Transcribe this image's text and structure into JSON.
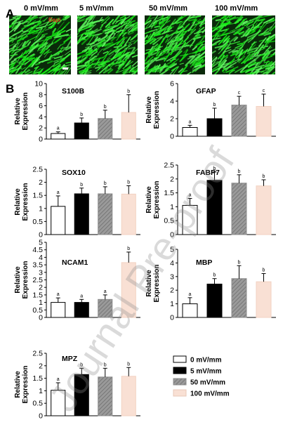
{
  "panel_a": {
    "letter": "A",
    "images": [
      {
        "label": "0 mV/mm",
        "stain_label": "Dapi"
      },
      {
        "label": "5 mV/mm"
      },
      {
        "label": "50 mV/mm"
      },
      {
        "label": "100 mV/mm"
      }
    ]
  },
  "panel_b": {
    "letter": "B"
  },
  "y_axis_label_line1": "Relative",
  "y_axis_label_line2": "Expression",
  "watermark": "Journal Pre-proof",
  "legend": [
    {
      "label": "0 mV/mm",
      "color": "#ffffff"
    },
    {
      "label": "5 mV/mm",
      "color": "#000000"
    },
    {
      "label": "50 mV/mm",
      "color": "#8c8c8c"
    },
    {
      "label": "100 mV/mm",
      "color": "#f9e0d4"
    }
  ],
  "colors": {
    "fluorescence": "#1fd11f",
    "background": "#0a2a0a"
  },
  "chart_data": [
    {
      "type": "bar",
      "title": "S100B",
      "categories": [
        "0 mV/mm",
        "5 mV/mm",
        "50 mV/mm",
        "100 mV/mm"
      ],
      "values": [
        1.0,
        2.9,
        3.7,
        4.8
      ],
      "errors": [
        0.3,
        0.9,
        1.5,
        3.2
      ],
      "significance": [
        "a",
        "b",
        "b",
        "b"
      ],
      "ylim": [
        0,
        10
      ],
      "yticks": [
        "0",
        "2",
        "4",
        "6",
        "8",
        "10"
      ],
      "ylabel": "Relative Expression"
    },
    {
      "type": "bar",
      "title": "GFAP",
      "categories": [
        "0 mV/mm",
        "5 mV/mm",
        "50 mV/mm",
        "100 mV/mm"
      ],
      "values": [
        1.0,
        2.0,
        3.55,
        3.4
      ],
      "errors": [
        0.25,
        1.2,
        1.0,
        1.4
      ],
      "significance": [
        "a",
        "b",
        "c",
        "c"
      ],
      "ylim": [
        0,
        6
      ],
      "yticks": [
        "0",
        "2",
        "4",
        "6"
      ],
      "ylabel": "Relative Expression"
    },
    {
      "type": "bar",
      "title": "SOX10",
      "categories": [
        "0 mV/mm",
        "5 mV/mm",
        "50 mV/mm",
        "100 mV/mm"
      ],
      "values": [
        1.08,
        1.56,
        1.56,
        1.55
      ],
      "errors": [
        0.4,
        0.22,
        0.27,
        0.32
      ],
      "significance": [
        "a",
        "b",
        "b",
        "b"
      ],
      "ylim": [
        0,
        2.5
      ],
      "yticks": [
        "0",
        "0.5",
        "1",
        "1.5",
        "2",
        "2.5"
      ],
      "ylabel": "Relative Expression"
    },
    {
      "type": "bar",
      "title": "FABP7",
      "categories": [
        "0 mV/mm",
        "5 mV/mm",
        "50 mV/mm",
        "100 mV/mm"
      ],
      "values": [
        1.05,
        1.95,
        1.85,
        1.75
      ],
      "errors": [
        0.25,
        0.3,
        0.3,
        0.22
      ],
      "significance": [
        "a",
        "b",
        "b",
        "b"
      ],
      "ylim": [
        0,
        2.5
      ],
      "yticks": [
        "0",
        "0.5",
        "1",
        "1.5",
        "2",
        "2.5"
      ],
      "ylabel": "Relative Expression"
    },
    {
      "type": "bar",
      "title": "NCAM1",
      "categories": [
        "0 mV/mm",
        "5 mV/mm",
        "50 mV/mm",
        "100 mV/mm"
      ],
      "values": [
        1.0,
        1.0,
        1.2,
        3.65
      ],
      "errors": [
        0.3,
        0.2,
        0.3,
        0.7
      ],
      "significance": [
        "a",
        "a",
        "a",
        "b"
      ],
      "ylim": [
        0,
        5
      ],
      "yticks": [
        "0",
        "0.5",
        "1",
        "1.5",
        "2",
        "2.5",
        "3",
        "3.5",
        "4",
        "4.5",
        "5"
      ],
      "ylabel": "Relative Expression"
    },
    {
      "type": "bar",
      "title": "MBP",
      "categories": [
        "0 mV/mm",
        "5 mV/mm",
        "50 mV/mm",
        "100 mV/mm"
      ],
      "values": [
        1.0,
        2.45,
        2.85,
        2.62
      ],
      "errors": [
        0.45,
        0.4,
        0.95,
        0.6
      ],
      "significance": [
        "a",
        "b",
        "b",
        "b"
      ],
      "ylim": [
        0,
        5
      ],
      "yticks": [
        "0",
        "1",
        "2",
        "3",
        "4",
        "5"
      ],
      "ylabel": "Relative Expression"
    },
    {
      "type": "bar",
      "title": "MPZ",
      "categories": [
        "0 mV/mm",
        "5 mV/mm",
        "50 mV/mm",
        "100 mV/mm"
      ],
      "values": [
        1.02,
        1.65,
        1.55,
        1.58
      ],
      "errors": [
        0.3,
        0.25,
        0.35,
        0.35
      ],
      "significance": [
        "a",
        "b",
        "b",
        "b"
      ],
      "ylim": [
        0,
        2.5
      ],
      "yticks": [
        "0",
        "0.5",
        "1",
        "1.5",
        "2",
        "2.5"
      ],
      "ylabel": "Relative Expression"
    }
  ]
}
